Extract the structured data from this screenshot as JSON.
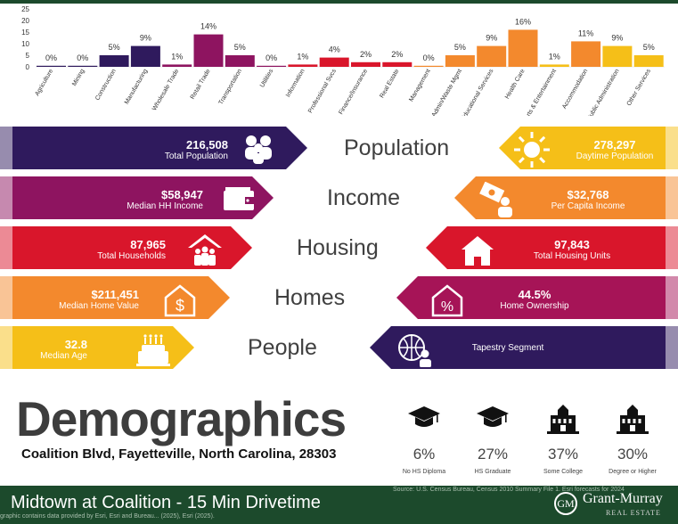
{
  "colors": {
    "top": "#1c4a2c",
    "navy": "#2f1a5d",
    "plum": "#8e1460",
    "red": "#d9162b",
    "orange": "#f3892d",
    "yellow": "#f5bf18",
    "magenta": "#a61457"
  },
  "chart_data": {
    "type": "bar",
    "title": "",
    "ylim": [
      0,
      25
    ],
    "yticks": [
      "25",
      "20",
      "15",
      "10",
      "5",
      "0"
    ],
    "categories": [
      "Agriculture",
      "Mining",
      "Construction",
      "Manufacturing",
      "Wholesale Trade",
      "Retail Trade",
      "Transportation",
      "Utilities",
      "Information",
      "Professional Svcs",
      "Finance/Insurance",
      "Real Estate",
      "Management",
      "Admin/Waste Mgmt",
      "Educational Services",
      "Health Care",
      "Arts & Entertainment",
      "Accommodation",
      "Public Administration",
      "Other Services"
    ],
    "values": [
      0,
      0,
      5,
      9,
      1,
      14,
      5,
      0,
      1,
      4,
      2,
      2,
      0,
      5,
      9,
      16,
      1,
      11,
      9,
      5
    ],
    "labels": [
      "0%",
      "0%",
      "5%",
      "9%",
      "1%",
      "14%",
      "5%",
      "0%",
      "1%",
      "4%",
      "2%",
      "2%",
      "0%",
      "5%",
      "9%",
      "16%",
      "1%",
      "11%",
      "9%",
      "5%"
    ],
    "bar_colors": [
      "#2f1a5d",
      "#2f1a5d",
      "#2f1a5d",
      "#2f1a5d",
      "#8e1460",
      "#8e1460",
      "#8e1460",
      "#8e1460",
      "#d9162b",
      "#d9162b",
      "#d9162b",
      "#d9162b",
      "#f3892d",
      "#f3892d",
      "#f3892d",
      "#f3892d",
      "#f5bf18",
      "#f3892d",
      "#f5bf18",
      "#f5bf18"
    ]
  },
  "bands": [
    {
      "label": "Population",
      "left": {
        "value": "216,508",
        "sub": "Total Population",
        "icon": "people-icon"
      },
      "right": {
        "value": "278,297",
        "sub": "Daytime Population",
        "icon": "sun-icon"
      }
    },
    {
      "label": "Income",
      "left": {
        "value": "$58,947",
        "sub": "Median HH Income",
        "icon": "wallet-icon"
      },
      "right": {
        "value": "$32,768",
        "sub": "Per Capita Income",
        "icon": "money-person-icon"
      }
    },
    {
      "label": "Housing",
      "left": {
        "value": "87,965",
        "sub": "Total Households",
        "icon": "household-icon"
      },
      "right": {
        "value": "97,843",
        "sub": "Total Housing Units",
        "icon": "house-icon"
      }
    },
    {
      "label": "Homes",
      "left": {
        "value": "$211,451",
        "sub": "Median Home Value",
        "icon": "house-dollar-icon"
      },
      "right": {
        "value": "44.5%",
        "sub": "Home Ownership",
        "icon": "house-percent-icon"
      }
    },
    {
      "label": "People",
      "left": {
        "value": "32.8",
        "sub": "Median Age",
        "icon": "cake-icon"
      },
      "right": {
        "value": "",
        "sub": "Tapestry Segment",
        "icon": "globe-person-icon"
      }
    }
  ],
  "title": "Demographics",
  "address": "Coalition Blvd, Fayetteville, North Carolina, 28303",
  "education": [
    {
      "pct": "6%",
      "label": "No HS Diploma",
      "icon": "grad-cap-icon"
    },
    {
      "pct": "27%",
      "label": "HS Graduate",
      "icon": "grad-cap-icon"
    },
    {
      "pct": "37%",
      "label": "Some College",
      "icon": "school-icon"
    },
    {
      "pct": "30%",
      "label": "Degree or Higher",
      "icon": "school-icon"
    }
  ],
  "footer": {
    "title": "Midtown at Coalition - 15 Min Drivetime",
    "source": "Source: U.S. Census Bureau, Census 2010 Summary File 1. Esri forecasts for 2024",
    "source2": "graphic contains data provided by Esri, Esri and Bureau... (2025), Esri (2025).",
    "logo": "GM",
    "brand": "Grant-Murray",
    "brand_sub": "REAL ESTATE"
  }
}
